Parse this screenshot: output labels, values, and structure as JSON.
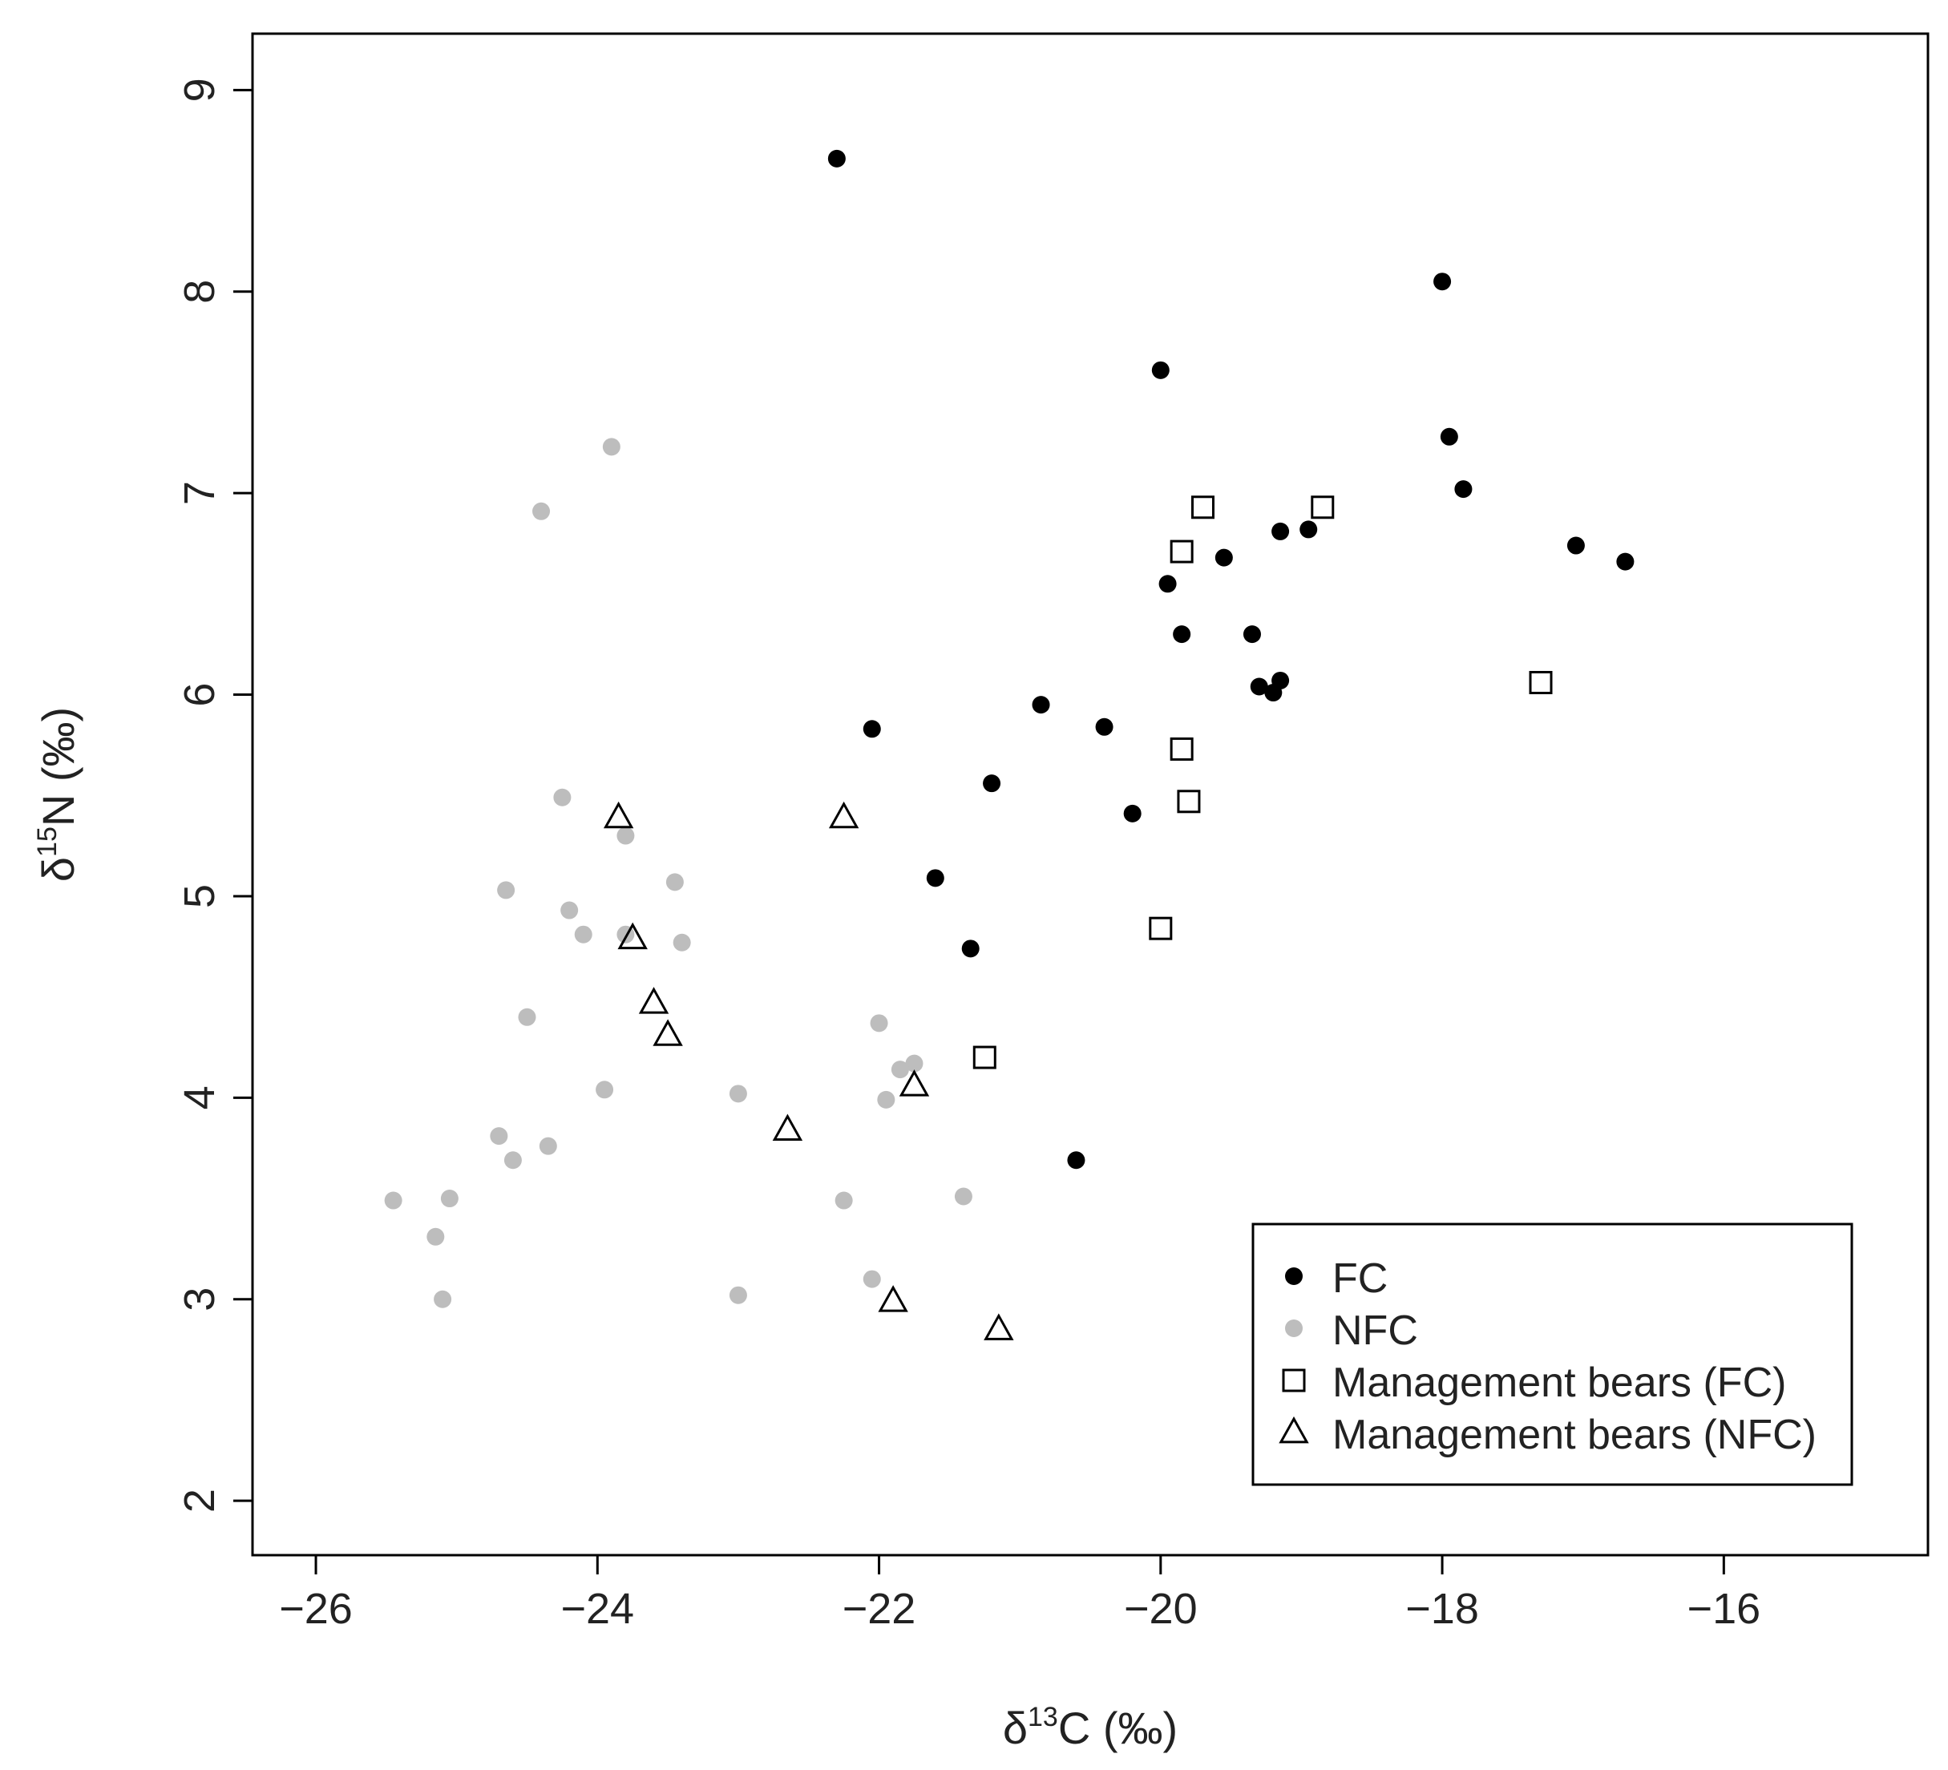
{
  "chart_data": {
    "type": "scatter",
    "xlabel": {
      "prefix": "δ",
      "sup": "13",
      "suffix": "C (‰)"
    },
    "ylabel": {
      "prefix": "δ",
      "sup": "15",
      "suffix": "N (‰)"
    },
    "xlim": [
      -26.45,
      -14.55
    ],
    "ylim": [
      1.73,
      9.28
    ],
    "x_ticks": [
      -26,
      -24,
      -22,
      -20,
      -18,
      -16
    ],
    "x_tick_labels": [
      "−26",
      "−24",
      "−22",
      "−20",
      "−18",
      "−16"
    ],
    "y_ticks": [
      2,
      3,
      4,
      5,
      6,
      7,
      8,
      9
    ],
    "y_tick_labels": [
      "2",
      "3",
      "4",
      "5",
      "6",
      "7",
      "8",
      "9"
    ],
    "grid": false,
    "legend_position": "bottom-right",
    "series": [
      {
        "name": "FC",
        "marker": "filled-circle",
        "color": "#000000",
        "points": [
          [
            -22.3,
            8.66
          ],
          [
            -18.0,
            8.05
          ],
          [
            -20.0,
            7.61
          ],
          [
            -17.95,
            7.28
          ],
          [
            -17.85,
            7.02
          ],
          [
            -19.15,
            6.81
          ],
          [
            -18.95,
            6.82
          ],
          [
            -17.05,
            6.74
          ],
          [
            -16.7,
            6.66
          ],
          [
            -19.55,
            6.68
          ],
          [
            -19.95,
            6.55
          ],
          [
            -19.85,
            6.3
          ],
          [
            -19.35,
            6.3
          ],
          [
            -19.3,
            6.04
          ],
          [
            -19.15,
            6.07
          ],
          [
            -19.2,
            6.01
          ],
          [
            -22.05,
            5.83
          ],
          [
            -20.85,
            5.95
          ],
          [
            -20.4,
            5.84
          ],
          [
            -21.2,
            5.56
          ],
          [
            -20.2,
            5.41
          ],
          [
            -21.6,
            5.09
          ],
          [
            -21.35,
            4.74
          ],
          [
            -20.6,
            3.69
          ]
        ]
      },
      {
        "name": "NFC",
        "marker": "filled-circle",
        "color": "#bdbdbd",
        "points": [
          [
            -23.9,
            7.23
          ],
          [
            -24.4,
            6.91
          ],
          [
            -24.25,
            5.49
          ],
          [
            -23.8,
            5.3
          ],
          [
            -24.65,
            5.03
          ],
          [
            -23.45,
            5.07
          ],
          [
            -24.2,
            4.93
          ],
          [
            -24.1,
            4.81
          ],
          [
            -23.8,
            4.81
          ],
          [
            -23.4,
            4.77
          ],
          [
            -24.5,
            4.4
          ],
          [
            -22.0,
            4.37
          ],
          [
            -21.75,
            4.17
          ],
          [
            -21.85,
            4.14
          ],
          [
            -23.95,
            4.04
          ],
          [
            -23.0,
            4.02
          ],
          [
            -21.95,
            3.99
          ],
          [
            -24.7,
            3.81
          ],
          [
            -24.35,
            3.76
          ],
          [
            -24.6,
            3.69
          ],
          [
            -25.45,
            3.49
          ],
          [
            -25.05,
            3.5
          ],
          [
            -22.25,
            3.49
          ],
          [
            -21.4,
            3.51
          ],
          [
            -25.15,
            3.31
          ],
          [
            -22.05,
            3.1
          ],
          [
            -25.1,
            3.0
          ],
          [
            -23.0,
            3.02
          ]
        ]
      },
      {
        "name": "Management bears (FC)",
        "marker": "open-square",
        "color": "#000000",
        "points": [
          [
            -19.7,
            6.93
          ],
          [
            -18.85,
            6.93
          ],
          [
            -19.85,
            6.71
          ],
          [
            -17.3,
            6.06
          ],
          [
            -19.85,
            5.73
          ],
          [
            -19.8,
            5.47
          ],
          [
            -20.0,
            4.84
          ],
          [
            -21.25,
            4.2
          ]
        ]
      },
      {
        "name": "Management bears (NFC)",
        "marker": "open-triangle",
        "color": "#000000",
        "points": [
          [
            -23.85,
            5.39
          ],
          [
            -22.25,
            5.39
          ],
          [
            -23.75,
            4.79
          ],
          [
            -23.6,
            4.47
          ],
          [
            -23.5,
            4.31
          ],
          [
            -21.75,
            4.06
          ],
          [
            -22.65,
            3.84
          ],
          [
            -21.9,
            2.99
          ],
          [
            -21.15,
            2.85
          ]
        ]
      }
    ]
  }
}
